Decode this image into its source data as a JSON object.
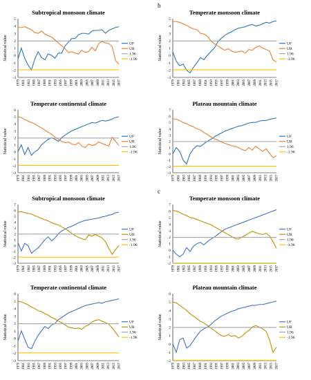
{
  "panel_labels": [
    "b",
    "c"
  ],
  "chart_data": [
    {
      "type": "line",
      "title": "Subtropical monsoon climate",
      "ylabel": "Statistical value",
      "ylim": [
        -3,
        5
      ],
      "ytick_step": 1,
      "x_tick_labels": [
        "1979",
        "1981",
        "1983",
        "1985",
        "1987",
        "1989",
        "1991",
        "1993",
        "1995",
        "1997",
        "1999",
        "2001",
        "2003",
        "2005",
        "2007",
        "2009",
        "2011",
        "2013",
        "2015",
        "2017"
      ],
      "legend_position": "right",
      "series": [
        {
          "name": "UF",
          "color": "#2e75b6",
          "values": [
            -0.5,
            1.0,
            -0.4,
            -1.3,
            -2.0,
            -0.5,
            0.5,
            -0.3,
            -0.6,
            0.2,
            0.0,
            -0.4,
            0.3,
            0.3,
            1.3,
            1.8,
            2.3,
            2.3,
            2.8,
            3.0,
            3.0,
            2.9,
            3.3,
            3.4,
            3.4,
            3.5,
            3.0,
            3.4,
            3.6,
            3.8,
            3.9
          ]
        },
        {
          "name": "UB",
          "color": "#ed7d31",
          "values": [
            3.8,
            3.8,
            3.9,
            3.7,
            3.5,
            3.1,
            3.0,
            3.3,
            2.9,
            2.7,
            2.5,
            2.1,
            1.7,
            1.3,
            0.9,
            0.4,
            0.5,
            0.3,
            0.2,
            0.7,
            0.4,
            0.5,
            1.1,
            0.6,
            1.6,
            1.9,
            1.7,
            1.6,
            1.2,
            -0.7,
            -1.2
          ]
        },
        {
          "name": "1.96",
          "color": "#a5a5a5",
          "values": [
            1.96,
            1.96
          ]
        },
        {
          "name": "-1.96",
          "color": "#ffc000",
          "values": [
            -1.96,
            -1.96
          ]
        }
      ]
    },
    {
      "type": "line",
      "title": "Temperate monsoon climate",
      "ylabel": "Statistical value",
      "ylim": [
        -3,
        5
      ],
      "ytick_step": 1,
      "x_tick_labels": [
        "1979",
        "1981",
        "1983",
        "1985",
        "1987",
        "1989",
        "1991",
        "1993",
        "1995",
        "1997",
        "1999",
        "2001",
        "2003",
        "2005",
        "2007",
        "2009",
        "2011",
        "2013",
        "2015",
        "2017"
      ],
      "legend_position": "right",
      "series": [
        {
          "name": "UF",
          "color": "#2e75b6",
          "values": [
            0.5,
            -0.8,
            -1.4,
            -1.2,
            -2.0,
            -2.4,
            -1.6,
            -1.0,
            -0.3,
            -0.6,
            0.0,
            0.5,
            1.0,
            1.8,
            2.3,
            2.7,
            3.0,
            3.2,
            3.5,
            3.7,
            3.8,
            3.9,
            4.1,
            4.2,
            4.0,
            4.1,
            4.3,
            4.5,
            4.4,
            4.6,
            4.7
          ]
        },
        {
          "name": "UB",
          "color": "#ed7d31",
          "values": [
            4.6,
            4.6,
            4.5,
            4.3,
            4.1,
            3.8,
            3.6,
            3.5,
            3.0,
            2.9,
            2.6,
            2.0,
            1.6,
            1.3,
            1.0,
            0.7,
            0.9,
            0.6,
            0.4,
            0.5,
            0.6,
            0.3,
            0.8,
            0.7,
            1.1,
            1.3,
            1.0,
            0.8,
            0.6,
            -0.6,
            -0.9
          ]
        },
        {
          "name": "1.96",
          "color": "#a5a5a5",
          "values": [
            1.96,
            1.96
          ]
        },
        {
          "name": "-1.96",
          "color": "#ffc000",
          "values": [
            -1.96,
            -1.96
          ]
        }
      ]
    },
    {
      "type": "line",
      "title": "Temperate continental climate",
      "ylabel": "Statistical value",
      "ylim": [
        -3,
        6
      ],
      "ytick_step": 1,
      "x_tick_labels": [
        "1979",
        "1981",
        "1983",
        "1985",
        "1987",
        "1989",
        "1991",
        "1993",
        "1995",
        "1997",
        "1999",
        "2001",
        "2003",
        "2005",
        "2007",
        "2009",
        "2011",
        "2013",
        "2015",
        "2017"
      ],
      "legend_position": "right",
      "series": [
        {
          "name": "UF",
          "color": "#2e75b6",
          "values": [
            0.0,
            1.0,
            -0.4,
            0.6,
            -0.5,
            0.0,
            0.3,
            1.0,
            1.4,
            1.8,
            2.0,
            1.8,
            1.5,
            2.0,
            2.4,
            2.7,
            3.0,
            3.2,
            3.4,
            3.6,
            3.8,
            4.0,
            4.2,
            4.1,
            4.3,
            4.5,
            4.4,
            4.5,
            4.7,
            4.9,
            5.0
          ]
        },
        {
          "name": "UB",
          "color": "#ed7d31",
          "values": [
            5.0,
            4.9,
            4.6,
            4.4,
            4.2,
            4.0,
            3.7,
            3.4,
            3.1,
            2.8,
            2.5,
            2.1,
            1.8,
            1.5,
            1.3,
            1.4,
            1.1,
            1.0,
            1.3,
            0.8,
            0.6,
            1.1,
            0.9,
            1.0,
            1.4,
            1.2,
            1.0,
            0.8,
            2.1,
            1.5,
            0.9
          ]
        },
        {
          "name": "1.96",
          "color": "#a5a5a5",
          "values": [
            1.96,
            1.96
          ]
        },
        {
          "name": "-1.96",
          "color": "#ffc000",
          "values": [
            -1.96,
            -1.96
          ]
        }
      ]
    },
    {
      "type": "line",
      "title": "Plateau mountain climate",
      "ylabel": "Statistical value",
      "ylim": [
        -3,
        7
      ],
      "ytick_step": 1,
      "x_tick_labels": [
        "1979",
        "1981",
        "1983",
        "1985",
        "1987",
        "1989",
        "1991",
        "1993",
        "1995",
        "1997",
        "1999",
        "2001",
        "2003",
        "2005",
        "2007",
        "2009",
        "2011",
        "2013",
        "2015",
        "2017"
      ],
      "legend_position": "right",
      "series": [
        {
          "name": "UF",
          "color": "#2e75b6",
          "values": [
            0.0,
            1.0,
            0.4,
            -1.0,
            -1.6,
            0.0,
            0.8,
            1.3,
            1.2,
            1.6,
            2.0,
            2.3,
            2.7,
            3.0,
            3.3,
            3.6,
            3.8,
            4.0,
            4.2,
            4.4,
            4.5,
            4.7,
            4.9,
            5.0,
            5.0,
            5.2,
            5.3,
            5.3,
            5.5,
            5.6,
            5.7
          ]
        },
        {
          "name": "UB",
          "color": "#ed7d31",
          "values": [
            5.6,
            5.5,
            5.3,
            5.0,
            4.8,
            4.5,
            4.3,
            4.0,
            3.8,
            3.4,
            3.1,
            2.7,
            2.4,
            2.2,
            1.9,
            1.7,
            1.5,
            1.3,
            1.2,
            1.0,
            0.7,
            0.5,
            1.0,
            0.6,
            1.2,
            0.8,
            0.4,
            0.8,
            0.1,
            -0.6,
            -0.3
          ]
        },
        {
          "name": "1.96",
          "color": "#a5a5a5",
          "values": [
            1.96,
            1.96
          ]
        },
        {
          "name": "-1.96",
          "color": "#ffc000",
          "values": [
            -1.96,
            -1.96
          ]
        }
      ]
    },
    {
      "type": "line",
      "title": "Subtropical monsoon climate",
      "ylabel": "Statistical value",
      "ylim": [
        -3,
        7
      ],
      "ytick_step": 1,
      "x_tick_labels": [
        "1979",
        "1981",
        "1983",
        "1985",
        "1987",
        "1989",
        "1991",
        "1993",
        "1995",
        "1997",
        "1999",
        "2001",
        "2003",
        "2005",
        "2007",
        "2009",
        "2011",
        "2013",
        "2015",
        "2017"
      ],
      "legend_position": "right",
      "series": [
        {
          "name": "UF",
          "color": "#4472c4",
          "values": [
            0.5,
            -0.9,
            0.4,
            0.0,
            -1.3,
            -0.8,
            -0.4,
            0.3,
            1.0,
            1.5,
            0.8,
            1.3,
            2.0,
            2.5,
            2.8,
            3.1,
            3.3,
            3.6,
            3.9,
            4.1,
            4.3,
            4.4,
            4.5,
            4.6,
            4.7,
            4.9,
            5.0,
            5.2,
            5.3,
            5.6,
            5.7
          ]
        },
        {
          "name": "UB",
          "color": "#bf9000",
          "values": [
            5.7,
            5.8,
            5.6,
            5.5,
            5.4,
            5.1,
            4.9,
            4.6,
            4.4,
            4.2,
            3.9,
            3.7,
            3.5,
            3.2,
            2.9,
            2.5,
            2.1,
            1.7,
            1.4,
            1.2,
            1.0,
            1.8,
            1.6,
            1.9,
            1.6,
            1.3,
            0.7,
            -0.5,
            -1.5,
            -0.7,
            0.0
          ]
        },
        {
          "name": "1.96",
          "color": "#a5a5a5",
          "values": [
            1.96,
            1.96
          ]
        },
        {
          "name": "-1.96",
          "color": "#ffc000",
          "values": [
            -1.96,
            -1.96
          ]
        }
      ]
    },
    {
      "type": "line",
      "title": "Temperate monsoon climate",
      "ylabel": "Statistical value",
      "ylim": [
        -2,
        7
      ],
      "ytick_step": 1,
      "x_tick_labels": [
        "1979",
        "1981",
        "1983",
        "1985",
        "1987",
        "1989",
        "1991",
        "1993",
        "1995",
        "1997",
        "1999",
        "2001",
        "2003",
        "2005",
        "2007",
        "2009",
        "2011",
        "2013",
        "2015",
        "2017"
      ],
      "legend_position": "right",
      "series": [
        {
          "name": "UF",
          "color": "#4472c4",
          "values": [
            0.0,
            -0.6,
            -1.0,
            -0.6,
            0.4,
            -0.2,
            0.6,
            1.0,
            1.2,
            0.8,
            1.3,
            1.7,
            2.0,
            2.4,
            2.8,
            3.2,
            3.4,
            3.6,
            3.8,
            4.0,
            4.2,
            4.4,
            4.6,
            4.8,
            5.0,
            5.2,
            5.4,
            5.6,
            5.8,
            6.0,
            6.2
          ]
        },
        {
          "name": "UB",
          "color": "#bf9000",
          "values": [
            6.1,
            6.0,
            5.8,
            5.5,
            5.3,
            5.0,
            4.9,
            4.7,
            4.5,
            4.3,
            4.1,
            3.9,
            3.6,
            3.3,
            3.0,
            2.7,
            2.4,
            2.1,
            1.8,
            1.7,
            2.0,
            2.3,
            2.6,
            2.9,
            2.7,
            2.5,
            2.4,
            2.6,
            2.2,
            1.3,
            0.3
          ]
        },
        {
          "name": "1.96",
          "color": "#a5a5a5",
          "values": [
            1.96,
            1.96
          ]
        },
        {
          "name": "-1.96",
          "color": "#ffc000",
          "values": [
            -1.96,
            -1.96
          ]
        }
      ]
    },
    {
      "type": "line",
      "title": "Temperate continental climate",
      "ylabel": "Statistical value",
      "ylim": [
        -3,
        6
      ],
      "ytick_step": 1,
      "x_tick_labels": [
        "1979",
        "1981",
        "1983",
        "1985",
        "1987",
        "1989",
        "1991",
        "1993",
        "1995",
        "1997",
        "1999",
        "2001",
        "2003",
        "2005",
        "2007",
        "2009",
        "2011",
        "2013",
        "2015",
        "2017"
      ],
      "legend_position": "right",
      "series": [
        {
          "name": "UF",
          "color": "#4472c4",
          "values": [
            -0.4,
            1.0,
            -0.1,
            -1.2,
            -1.4,
            -0.4,
            0.4,
            1.0,
            1.6,
            1.3,
            1.8,
            2.0,
            2.5,
            2.8,
            3.1,
            3.4,
            3.6,
            3.8,
            4.0,
            4.2,
            4.4,
            4.5,
            4.6,
            4.7,
            4.8,
            4.7,
            4.9,
            5.0,
            5.1,
            5.2,
            5.3
          ]
        },
        {
          "name": "UB",
          "color": "#bf9000",
          "values": [
            5.0,
            4.9,
            4.7,
            4.5,
            4.2,
            4.0,
            3.7,
            3.6,
            3.3,
            3.1,
            2.8,
            2.6,
            2.3,
            2.1,
            1.8,
            1.5,
            1.4,
            1.3,
            1.4,
            1.2,
            1.6,
            1.8,
            2.2,
            2.4,
            2.5,
            2.3,
            2.1,
            1.9,
            1.4,
            0.8,
            0.2
          ]
        },
        {
          "name": "1.96",
          "color": "#a5a5a5",
          "values": [
            1.96,
            1.96
          ]
        },
        {
          "name": "-1.96",
          "color": "#ffc000",
          "values": [
            -1.96,
            -1.96
          ]
        }
      ]
    },
    {
      "type": "line",
      "title": "Plateau mountain climate",
      "ylabel": "Statistical value",
      "ylim": [
        -2,
        6
      ],
      "ytick_step": 1,
      "x_tick_labels": [
        "1979",
        "1981",
        "1983",
        "1985",
        "1987",
        "1989",
        "1991",
        "1993",
        "1995",
        "1997",
        "1999",
        "2001",
        "2003",
        "2005",
        "2007",
        "2009",
        "2011",
        "2013",
        "2015",
        "2017"
      ],
      "legend_position": "right",
      "series": [
        {
          "name": "UF",
          "color": "#4472c4",
          "values": [
            0.0,
            -1.0,
            0.5,
            0.7,
            -0.5,
            -0.2,
            0.4,
            1.0,
            1.5,
            1.8,
            2.0,
            2.3,
            2.7,
            3.0,
            3.3,
            3.5,
            3.7,
            3.9,
            4.0,
            4.2,
            4.3,
            4.4,
            4.5,
            4.6,
            4.6,
            4.7,
            4.7,
            4.8,
            4.9,
            5.0,
            5.1
          ]
        },
        {
          "name": "UB",
          "color": "#bf9000",
          "values": [
            5.0,
            4.9,
            4.6,
            4.3,
            4.0,
            3.6,
            3.3,
            3.0,
            2.7,
            2.5,
            2.2,
            1.9,
            1.6,
            1.3,
            1.0,
            0.9,
            1.1,
            0.9,
            1.0,
            0.7,
            0.9,
            1.3,
            1.6,
            2.0,
            2.2,
            2.0,
            1.8,
            1.5,
            0.5,
            -1.0,
            -0.4
          ]
        },
        {
          "name": "1.96",
          "color": "#a5a5a5",
          "values": [
            1.96,
            1.96
          ]
        },
        {
          "name": "-1.96",
          "color": "#ffc000",
          "values": [
            -1.96,
            -1.96
          ]
        }
      ]
    }
  ]
}
